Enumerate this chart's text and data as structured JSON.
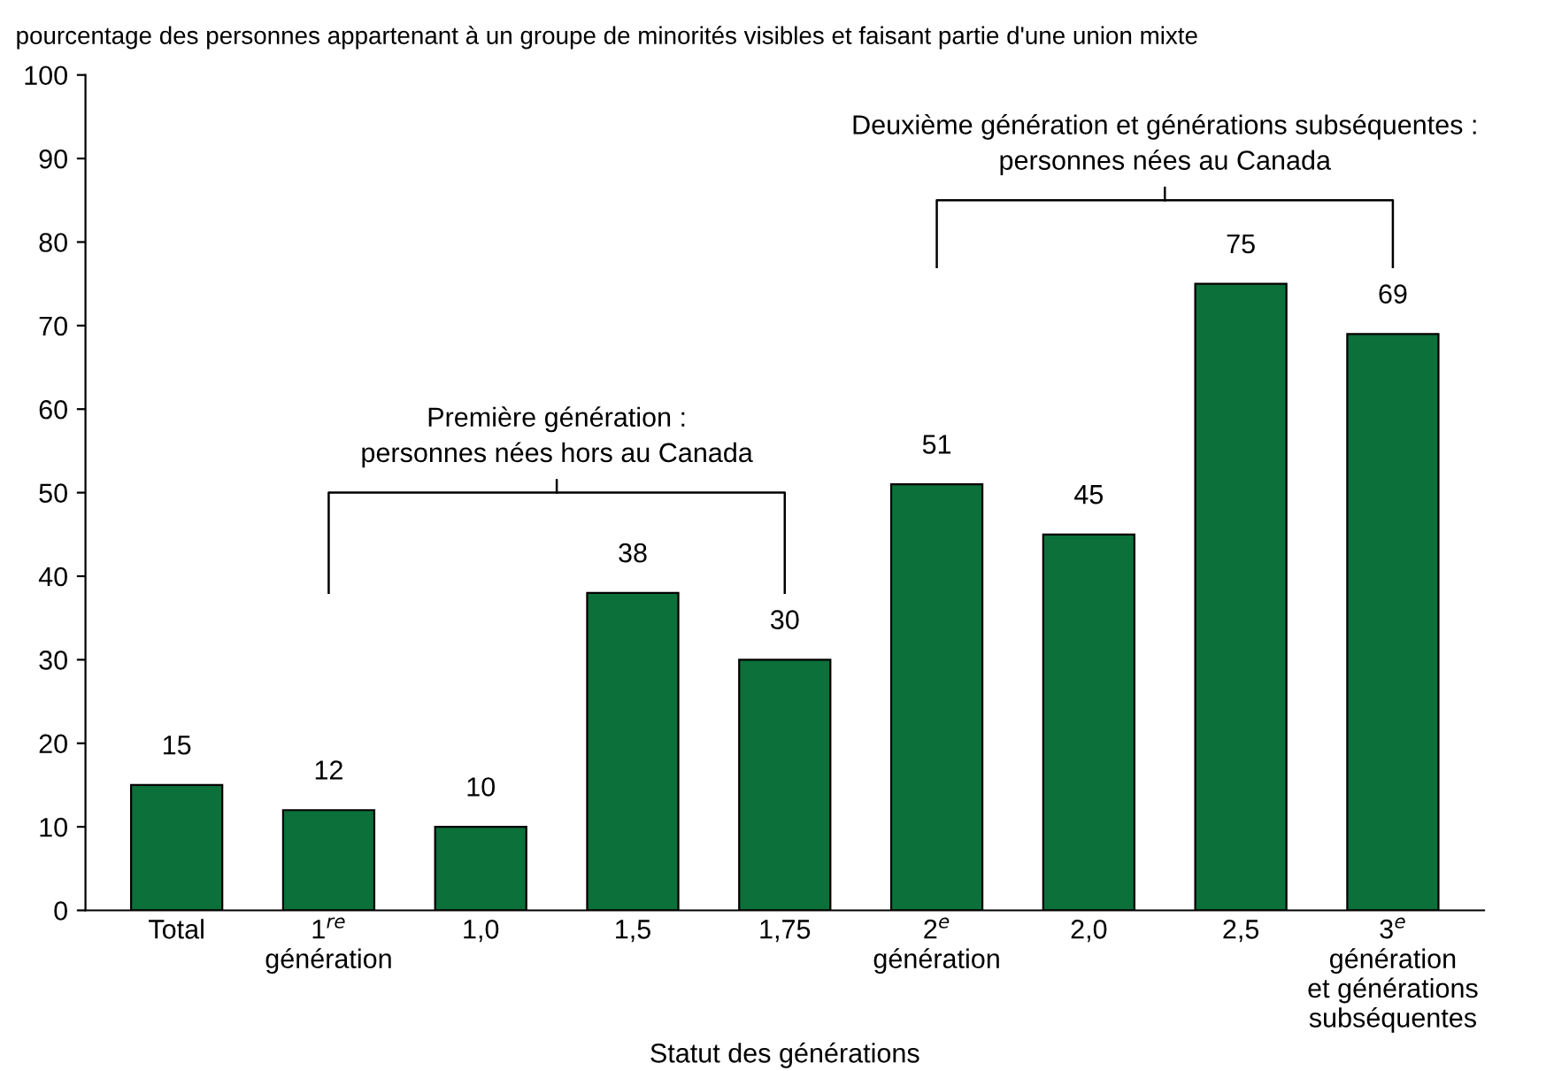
{
  "chart_data": {
    "type": "bar",
    "title": "pourcentage des personnes appartenant à un groupe de minorités visibles et faisant partie d'une union mixte",
    "xlabel": "Statut des générations",
    "categories": [
      "Total",
      "1$^{re}$\ngénération",
      "1,0",
      "1,5",
      "1,75",
      "2$^{e}$\ngénération",
      "2,0",
      "2,5",
      "3$^{e}$\ngénération\net générations\nsubséquentes"
    ],
    "values": [
      15,
      12,
      10,
      38,
      30,
      51,
      45,
      75,
      69
    ],
    "color": "#0b7039",
    "data_labels": true,
    "ylim": [
      0,
      100
    ],
    "yticks": [
      0,
      10,
      20,
      30,
      40,
      50,
      60,
      70,
      80,
      90,
      100
    ],
    "grid": false,
    "annotations": [
      "Première génération :\npersonnes nées hors au Canada",
      "Deuxième génération et générations subséquentes :\npersonnes nées au Canada"
    ]
  }
}
